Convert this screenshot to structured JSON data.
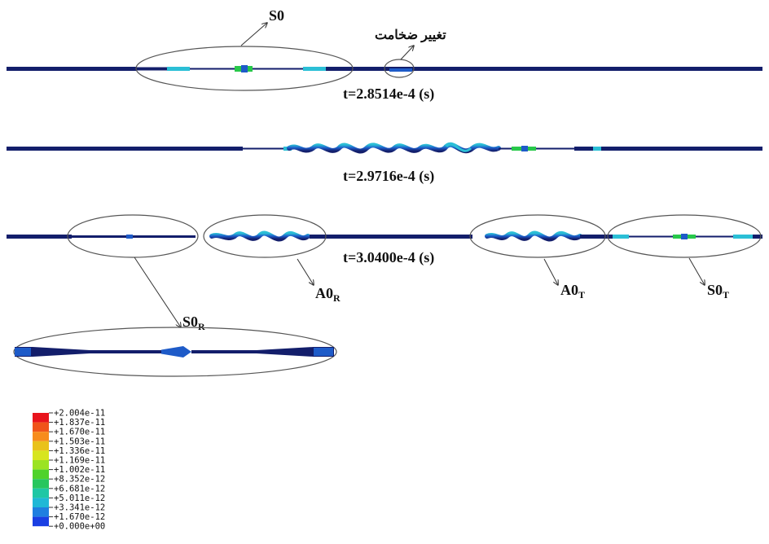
{
  "frames": [
    {
      "time_label": "t=2.8514e-4 (s)"
    },
    {
      "time_label": "t=2.9716e-4 (s)"
    },
    {
      "time_label": "t=3.0400e-4 (s)"
    }
  ],
  "labels": {
    "s0": "S0",
    "thickness_change": "تغيير ضخامت",
    "a0_reflected": {
      "base": "A0",
      "sub": "R"
    },
    "a0_transmitted": {
      "base": "A0",
      "sub": "T"
    },
    "s0_transmitted": {
      "base": "S0",
      "sub": "T"
    },
    "s0_reflected": {
      "base": "S0",
      "sub": "R"
    }
  },
  "legend": {
    "values": [
      "+2.004e-11",
      "+1.837e-11",
      "+1.670e-11",
      "+1.503e-11",
      "+1.336e-11",
      "+1.169e-11",
      "+1.002e-11",
      "+8.352e-12",
      "+6.681e-12",
      "+5.011e-12",
      "+3.341e-12",
      "+1.670e-12",
      "+0.000e+00"
    ],
    "colors": [
      "#e8141c",
      "#f0541a",
      "#f78c1c",
      "#e9c21a",
      "#d7e51f",
      "#9be322",
      "#4fd22c",
      "#27c65e",
      "#1fc7a5",
      "#1fb8d6",
      "#1f7fe0",
      "#1a3fe3"
    ]
  },
  "colors": {
    "plate": "#131e6b",
    "plate_light": "#1e5bc8",
    "cyan": "#2bbfd6",
    "green": "#28c84a",
    "outline": "#555555"
  }
}
